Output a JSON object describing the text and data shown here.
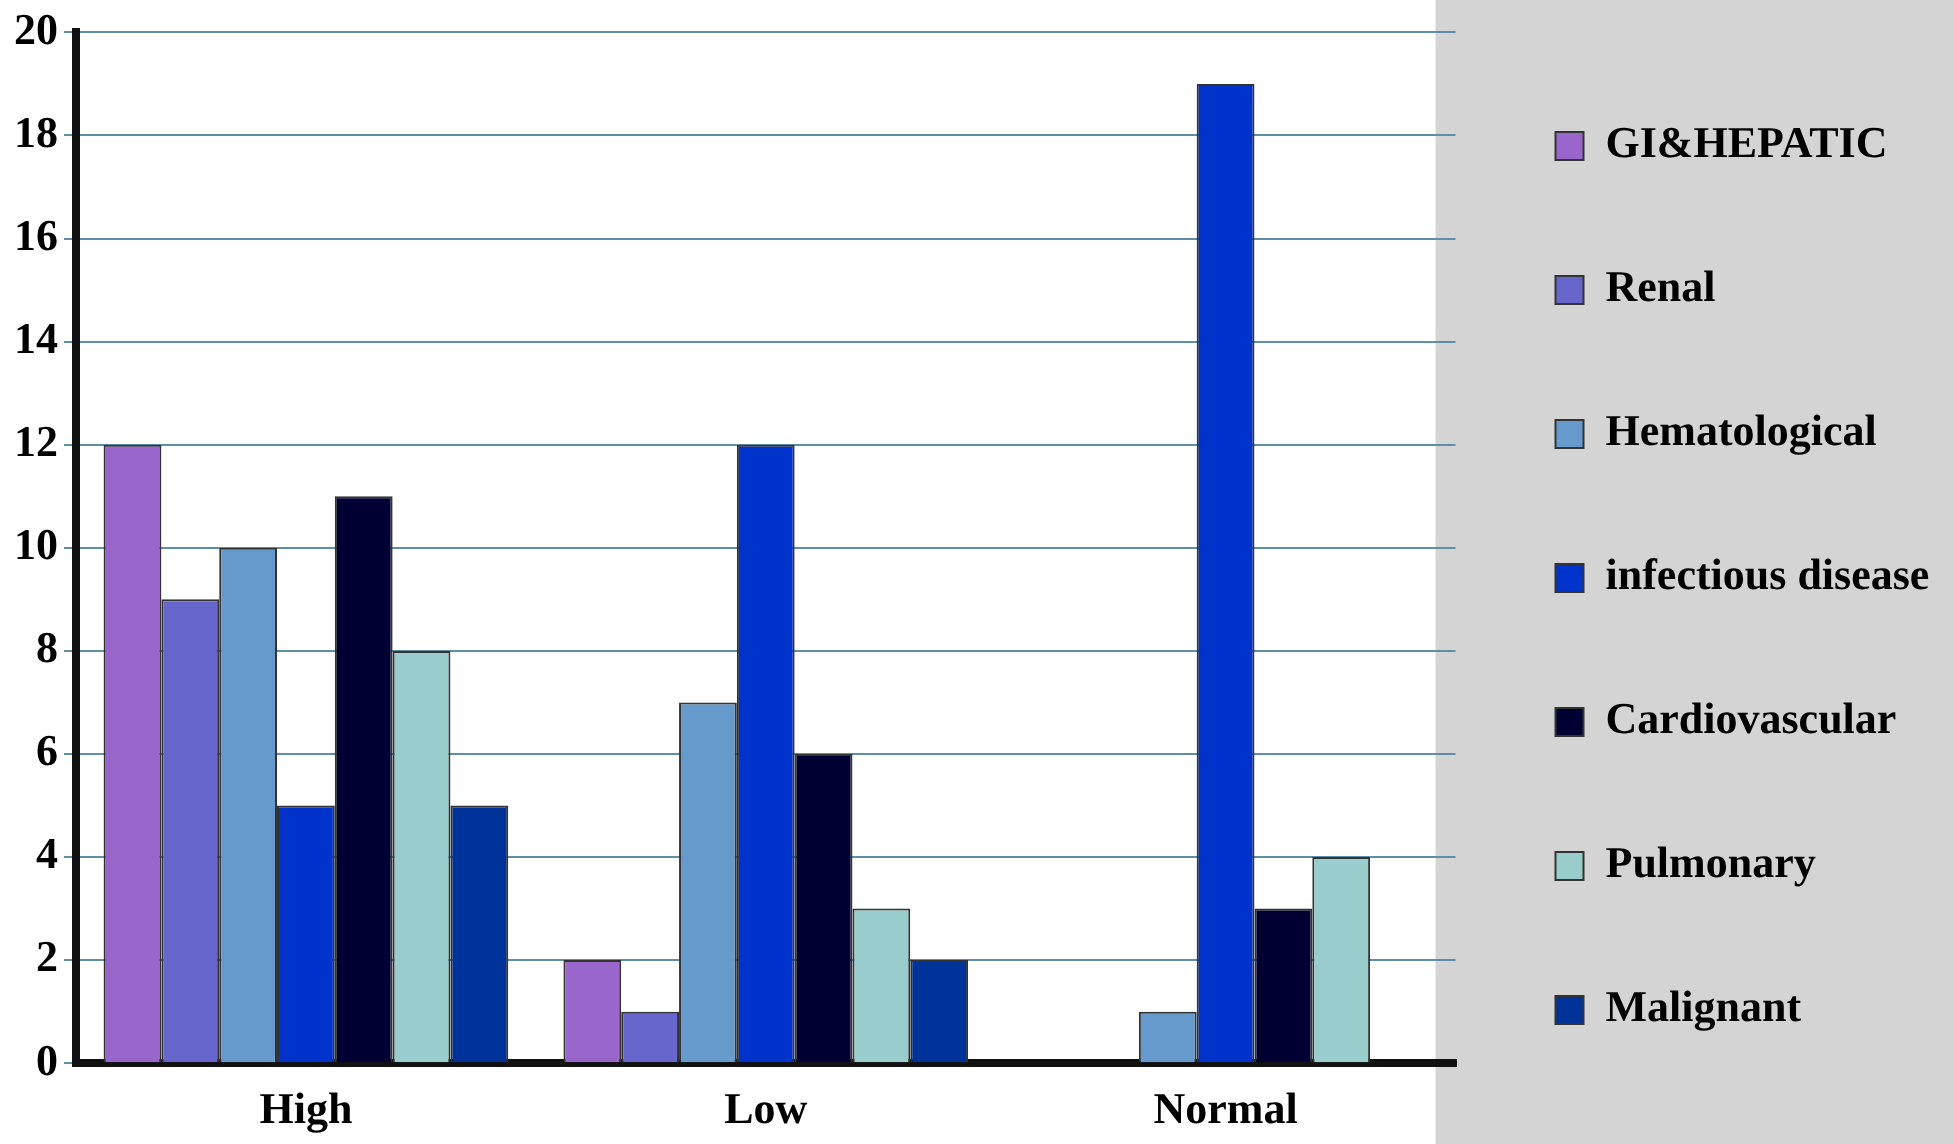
{
  "chart_data": {
    "type": "bar",
    "categories": [
      "High",
      "Low",
      "Normal"
    ],
    "series": [
      {
        "name": "GI&HEPATIC",
        "color": "#9966cc",
        "values": [
          12,
          2,
          0
        ]
      },
      {
        "name": "Renal",
        "color": "#6666cc",
        "values": [
          9,
          1,
          0
        ]
      },
      {
        "name": "Hematological",
        "color": "#6699cc",
        "values": [
          10,
          7,
          1
        ]
      },
      {
        "name": "infectious disease",
        "color": "#0033cc",
        "values": [
          5,
          12,
          19
        ]
      },
      {
        "name": "Cardiovascular",
        "color": "#000033",
        "values": [
          11,
          6,
          3
        ]
      },
      {
        "name": "Pulmonary",
        "color": "#99cccc",
        "values": [
          8,
          3,
          4
        ]
      },
      {
        "name": "Malignant",
        "color": "#003399",
        "values": [
          5,
          2,
          0
        ]
      }
    ],
    "ylim": [
      0,
      20
    ],
    "yticks": [
      0,
      2,
      4,
      6,
      8,
      10,
      12,
      14,
      16,
      18,
      20
    ],
    "grid": "y",
    "legend": "right"
  }
}
